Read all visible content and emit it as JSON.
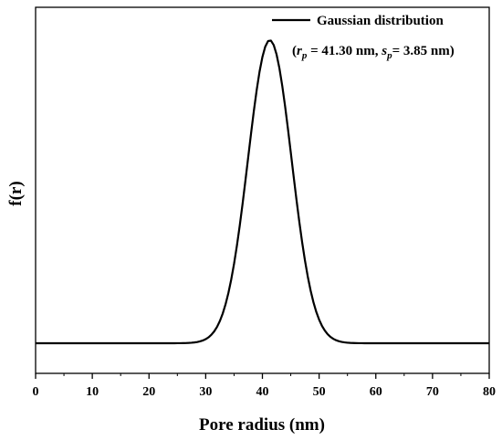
{
  "chart_data": {
    "type": "line",
    "title": "",
    "xlabel": "Pore radius (nm)",
    "ylabel": "f(r)",
    "xlim": [
      0,
      80
    ],
    "xticks": [
      "0",
      "10",
      "20",
      "30",
      "40",
      "50",
      "60",
      "70",
      "80"
    ],
    "grid": false,
    "legend_position": "top-right",
    "series": [
      {
        "name": "Gaussian distribution",
        "color": "#000000",
        "distribution": "gaussian",
        "mean": 41.3,
        "std": 3.85
      }
    ],
    "annotation": {
      "open": "(",
      "r_sym": "r",
      "r_sub": "p",
      "r_val": " = 41.30 nm, ",
      "s_sym": "s",
      "s_sub": "p",
      "s_val": "= 3.85 nm)"
    }
  }
}
